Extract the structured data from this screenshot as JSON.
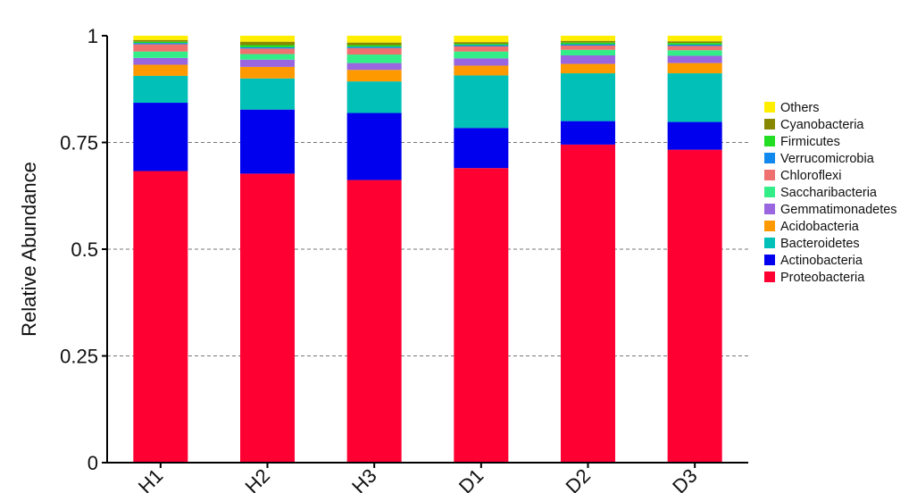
{
  "chart_data": {
    "type": "bar",
    "stacked": true,
    "title": "",
    "xlabel": "",
    "ylabel": "Relative Abundance",
    "ylim": [
      0,
      1
    ],
    "yticks": [
      "0",
      "0.25",
      "0.5",
      "0.75",
      "1"
    ],
    "grid": "horizontal dashed at 0.25, 0.5, 0.75",
    "legend_position": "right",
    "categories": [
      "H1",
      "H2",
      "H3",
      "D1",
      "D2",
      "D3"
    ],
    "series": [
      {
        "name": "Proteobacteria",
        "color": "#ff0033",
        "values": [
          0.683,
          0.677,
          0.662,
          0.69,
          0.745,
          0.733
        ]
      },
      {
        "name": "Actinobacteria",
        "color": "#0000ee",
        "values": [
          0.16,
          0.15,
          0.157,
          0.094,
          0.055,
          0.065
        ]
      },
      {
        "name": "Bacteroidetes",
        "color": "#00c0b8",
        "values": [
          0.063,
          0.073,
          0.074,
          0.123,
          0.112,
          0.114
        ]
      },
      {
        "name": "Acidobacteria",
        "color": "#ff9900",
        "values": [
          0.026,
          0.027,
          0.027,
          0.023,
          0.022,
          0.024
        ]
      },
      {
        "name": "Gemmatimonadetes",
        "color": "#9966e0",
        "values": [
          0.016,
          0.017,
          0.016,
          0.017,
          0.02,
          0.017
        ]
      },
      {
        "name": "Saccharibacteria",
        "color": "#33ee88",
        "values": [
          0.015,
          0.013,
          0.02,
          0.016,
          0.013,
          0.013
        ]
      },
      {
        "name": "Chloroflexi",
        "color": "#f07070",
        "values": [
          0.017,
          0.013,
          0.015,
          0.012,
          0.01,
          0.01
        ]
      },
      {
        "name": "Verrucomicrobia",
        "color": "#1188ee",
        "values": [
          0.003,
          0.003,
          0.003,
          0.003,
          0.003,
          0.003
        ]
      },
      {
        "name": "Firmicutes",
        "color": "#22dd22",
        "values": [
          0.003,
          0.005,
          0.004,
          0.003,
          0.004,
          0.004
        ]
      },
      {
        "name": "Cyanobacteria",
        "color": "#888800",
        "values": [
          0.004,
          0.008,
          0.006,
          0.004,
          0.004,
          0.004
        ]
      },
      {
        "name": "Others",
        "color": "#ffee00",
        "values": [
          0.01,
          0.014,
          0.016,
          0.015,
          0.012,
          0.013
        ]
      }
    ]
  }
}
